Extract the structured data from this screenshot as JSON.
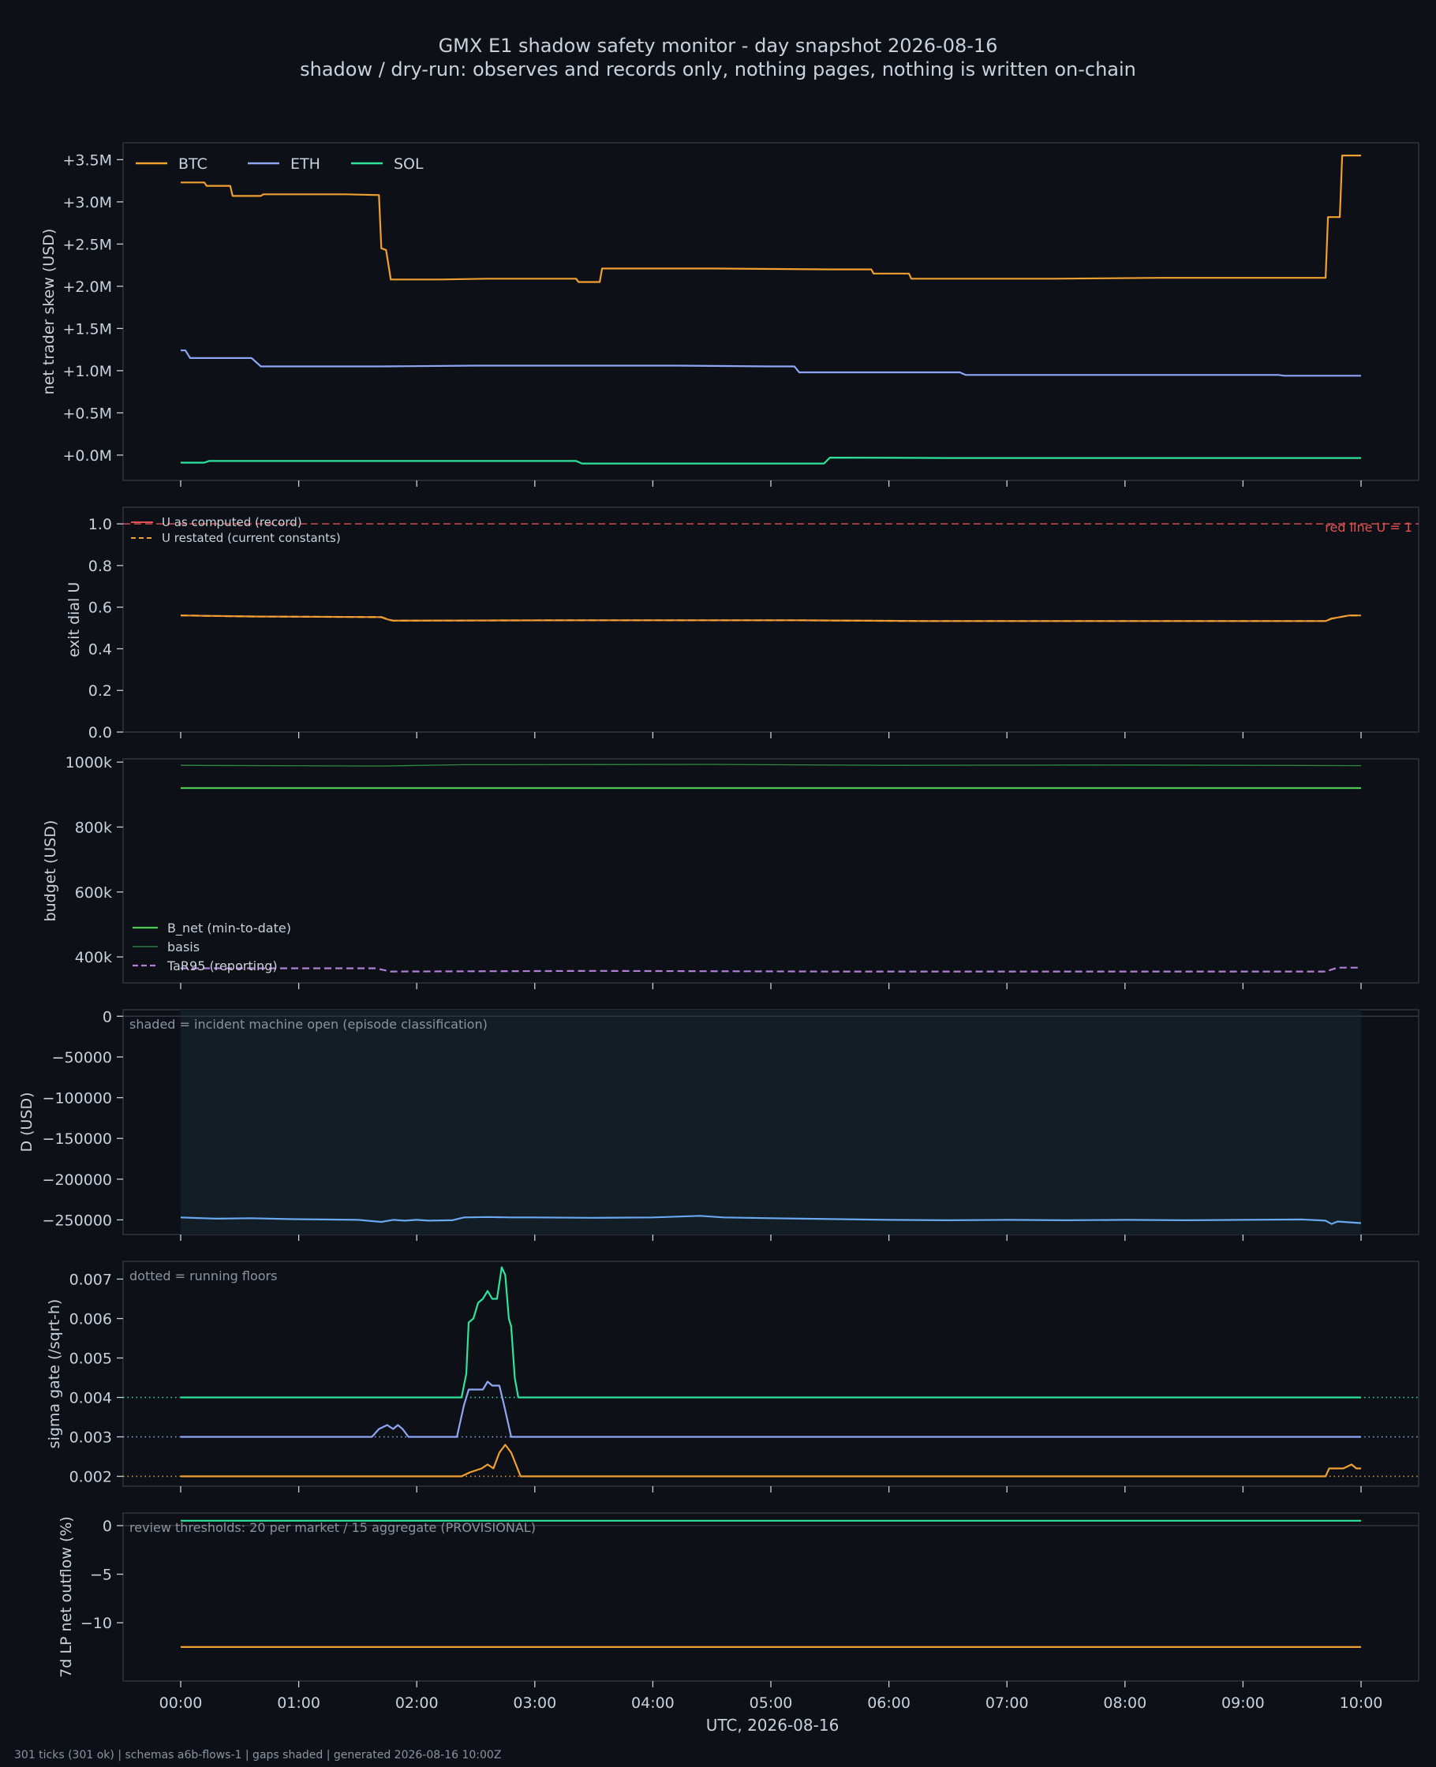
{
  "header": {
    "title": "GMX E1 shadow safety monitor - day snapshot 2026-08-16",
    "subtitle": "shadow / dry-run: observes and records only, nothing pages, nothing is written on-chain"
  },
  "footer": "301 ticks (301 ok) | schemas a6b-flows-1 | gaps shaded | generated 2026-08-16 10:00Z",
  "colors": {
    "background": "#0d1117",
    "panel": "#0d1117",
    "frame": "#30363d",
    "text": "#c9d1d9",
    "btc": "#f0a030",
    "eth": "#8fa6f5",
    "sol": "#2ee39a",
    "budget": "#4ec94e",
    "basis": "#2e8b3e",
    "tar": "#b07fd6",
    "redline": "#e05252",
    "u_computed": "#e8923a",
    "d_line": "#6aa8f0",
    "shade": "#121d26"
  },
  "chart_data": [
    {
      "id": "skew",
      "type": "line",
      "ylabel": "net trader skew (USD)",
      "ylim": [
        -300000,
        3700000
      ],
      "yticks": [
        0,
        500000,
        1000000,
        1500000,
        2000000,
        2500000,
        3000000,
        3500000
      ],
      "yticklabels": [
        "+0.0M",
        "+0.5M",
        "+1.0M",
        "+1.5M",
        "+2.0M",
        "+2.5M",
        "+3.0M",
        "+3.5M"
      ],
      "legend": "top-left",
      "series": [
        {
          "name": "BTC",
          "color": "btc",
          "style": "solid",
          "x": [
            0,
            0.2,
            0.22,
            0.42,
            0.44,
            0.68,
            0.7,
            1.4,
            1.68,
            1.7,
            1.74,
            1.78,
            2.2,
            2.6,
            3.35,
            3.37,
            3.55,
            3.57,
            4.5,
            5.5,
            5.85,
            5.87,
            6.17,
            6.19,
            7.4,
            8.3,
            9.7,
            9.72,
            9.82,
            9.84,
            10.0
          ],
          "y": [
            3230000,
            3230000,
            3190000,
            3190000,
            3070000,
            3070000,
            3090000,
            3090000,
            3080000,
            2450000,
            2430000,
            2080000,
            2080000,
            2090000,
            2090000,
            2050000,
            2050000,
            2210000,
            2210000,
            2200000,
            2200000,
            2150000,
            2150000,
            2090000,
            2090000,
            2100000,
            2100000,
            2820000,
            2820000,
            3550000,
            3550000
          ]
        },
        {
          "name": "ETH",
          "color": "eth",
          "style": "solid",
          "x": [
            0,
            0.04,
            0.08,
            0.6,
            0.68,
            1.7,
            2.5,
            4.2,
            5.0,
            5.2,
            5.24,
            6.0,
            6.6,
            6.65,
            8.2,
            9.3,
            9.35,
            10.0
          ],
          "y": [
            1240000,
            1240000,
            1150000,
            1150000,
            1050000,
            1050000,
            1060000,
            1060000,
            1050000,
            1050000,
            980000,
            980000,
            980000,
            950000,
            950000,
            950000,
            940000,
            940000
          ]
        },
        {
          "name": "SOL",
          "color": "sol",
          "style": "solid",
          "x": [
            0,
            0.2,
            0.24,
            3.35,
            3.4,
            5.45,
            5.5,
            6.5,
            10.0
          ],
          "y": [
            -90000,
            -90000,
            -70000,
            -70000,
            -100000,
            -100000,
            -30000,
            -35000,
            -35000
          ]
        }
      ]
    },
    {
      "id": "exit_dial",
      "type": "line",
      "ylabel": "exit dial U",
      "ylim": [
        0,
        1.08
      ],
      "yticks": [
        0,
        0.2,
        0.4,
        0.6,
        0.8,
        1.0
      ],
      "yticklabels": [
        "0.0",
        "0.2",
        "0.4",
        "0.6",
        "0.8",
        "1.0"
      ],
      "legend": "top-left",
      "annotations": [
        {
          "text": "red line U = 1",
          "position": "top-right"
        }
      ],
      "hlines": [
        {
          "y": 1.0,
          "color": "redline",
          "style": "dashed"
        }
      ],
      "series": [
        {
          "name": "U as computed (record)",
          "color": "u_computed",
          "style": "solid",
          "x": [
            0,
            0.6,
            1.7,
            1.76,
            1.8,
            3.4,
            5.2,
            6.3,
            9.7,
            9.75,
            9.9,
            10.0
          ],
          "y": [
            0.56,
            0.555,
            0.552,
            0.54,
            0.535,
            0.537,
            0.537,
            0.533,
            0.533,
            0.545,
            0.56,
            0.56
          ]
        },
        {
          "name": "U restated (current constants)",
          "color": "btc",
          "style": "dashed",
          "x": [
            0,
            0.6,
            1.7,
            1.76,
            1.8,
            3.4,
            5.2,
            6.3,
            9.7,
            9.75,
            9.9,
            10.0
          ],
          "y": [
            0.56,
            0.555,
            0.552,
            0.54,
            0.535,
            0.537,
            0.537,
            0.533,
            0.533,
            0.545,
            0.56,
            0.56
          ]
        }
      ]
    },
    {
      "id": "budget",
      "type": "line",
      "ylabel": "budget (USD)",
      "ylim": [
        320000,
        1010000
      ],
      "yticks": [
        400000,
        600000,
        800000,
        1000000
      ],
      "yticklabels": [
        "400k",
        "600k",
        "800k",
        "1000k"
      ],
      "legend": "bottom-left",
      "series": [
        {
          "name": "B_net (min-to-date)",
          "color": "budget",
          "style": "solid",
          "x": [
            0,
            10.0
          ],
          "y": [
            920000,
            920000
          ]
        },
        {
          "name": "basis",
          "color": "basis",
          "style": "solid",
          "x": [
            0,
            1.7,
            2.4,
            4.5,
            6.0,
            8.0,
            10.0
          ],
          "y": [
            990000,
            988000,
            992000,
            993000,
            990000,
            991000,
            989000
          ]
        },
        {
          "name": "TaR95 (reporting)",
          "color": "tar",
          "style": "dashed",
          "x": [
            0,
            1.65,
            1.78,
            3.5,
            5.5,
            9.7,
            9.8,
            10.0
          ],
          "y": [
            365000,
            365000,
            355000,
            357000,
            355000,
            355000,
            367000,
            367000
          ]
        }
      ]
    },
    {
      "id": "drawdown",
      "type": "area",
      "ylabel": "D (USD)",
      "ylim": [
        -268000,
        8000
      ],
      "yticks": [
        0,
        -50000,
        -100000,
        -150000,
        -200000,
        -250000
      ],
      "yticklabels": [
        "0",
        "−50000",
        "−100000",
        "−150000",
        "−200000",
        "−250000"
      ],
      "annotations": [
        {
          "text": "shaded = incident machine open (episode classification)",
          "position": "top-left"
        }
      ],
      "shaded_x": [
        0,
        10.0
      ],
      "hlines": [
        {
          "y": 0,
          "color": "frame",
          "style": "solid"
        }
      ],
      "series": [
        {
          "name": "D",
          "color": "d_line",
          "style": "solid",
          "x": [
            0,
            0.3,
            0.6,
            0.9,
            1.2,
            1.5,
            1.7,
            1.8,
            1.9,
            2.0,
            2.1,
            2.3,
            2.4,
            2.6,
            2.8,
            3.0,
            3.5,
            4.0,
            4.4,
            4.6,
            5.0,
            5.5,
            6.0,
            6.5,
            7.0,
            7.5,
            8.0,
            8.5,
            9.0,
            9.5,
            9.7,
            9.75,
            9.8,
            10.0
          ],
          "y": [
            -247000,
            -248500,
            -248000,
            -249000,
            -249500,
            -250000,
            -252500,
            -250000,
            -251000,
            -250000,
            -251000,
            -250500,
            -247000,
            -246500,
            -247000,
            -247000,
            -247500,
            -247000,
            -245000,
            -247000,
            -248000,
            -249000,
            -250000,
            -250500,
            -250000,
            -250500,
            -250000,
            -250500,
            -250000,
            -249500,
            -251000,
            -255000,
            -252000,
            -254000
          ]
        }
      ]
    },
    {
      "id": "sigma_gate",
      "type": "line",
      "ylabel": "sigma gate (/sqrt-h)",
      "ylim": [
        0.00175,
        0.00745
      ],
      "yticks": [
        0.002,
        0.003,
        0.004,
        0.005,
        0.006,
        0.007
      ],
      "yticklabels": [
        "0.002",
        "0.003",
        "0.004",
        "0.005",
        "0.006",
        "0.007"
      ],
      "annotations": [
        {
          "text": "dotted = running floors",
          "position": "top-left"
        }
      ],
      "hlines": [
        {
          "y": 0.004,
          "color": "sol",
          "style": "dotted"
        },
        {
          "y": 0.003,
          "color": "eth",
          "style": "dotted"
        },
        {
          "y": 0.002,
          "color": "btc",
          "style": "dotted"
        }
      ],
      "series": [
        {
          "name": "SOL",
          "color": "sol",
          "style": "solid",
          "x": [
            0,
            2.38,
            2.42,
            2.44,
            2.48,
            2.52,
            2.56,
            2.6,
            2.64,
            2.68,
            2.72,
            2.75,
            2.78,
            2.8,
            2.83,
            2.86,
            10.0
          ],
          "y": [
            0.004,
            0.004,
            0.0046,
            0.0059,
            0.006,
            0.0064,
            0.0065,
            0.0067,
            0.0065,
            0.0065,
            0.0073,
            0.0071,
            0.006,
            0.0058,
            0.0045,
            0.004,
            0.004
          ]
        },
        {
          "name": "ETH",
          "color": "eth",
          "style": "solid",
          "x": [
            0,
            1.62,
            1.68,
            1.75,
            1.8,
            1.84,
            1.88,
            1.93,
            2.34,
            2.4,
            2.44,
            2.5,
            2.56,
            2.6,
            2.64,
            2.7,
            2.74,
            2.8,
            10.0
          ],
          "y": [
            0.003,
            0.003,
            0.0032,
            0.0033,
            0.0032,
            0.0033,
            0.0032,
            0.003,
            0.003,
            0.0038,
            0.0042,
            0.0042,
            0.0042,
            0.0044,
            0.0043,
            0.0043,
            0.0038,
            0.003,
            0.003
          ]
        },
        {
          "name": "BTC",
          "color": "btc",
          "style": "solid",
          "x": [
            0,
            2.38,
            2.45,
            2.55,
            2.6,
            2.65,
            2.7,
            2.75,
            2.8,
            2.84,
            2.88,
            9.7,
            9.73,
            9.85,
            9.92,
            9.96,
            10.0
          ],
          "y": [
            0.002,
            0.002,
            0.0021,
            0.0022,
            0.0023,
            0.0022,
            0.0026,
            0.0028,
            0.0026,
            0.0023,
            0.002,
            0.002,
            0.0022,
            0.0022,
            0.0023,
            0.0022,
            0.0022
          ]
        }
      ]
    },
    {
      "id": "lp_outflow",
      "type": "line",
      "ylabel": "7d LP net outflow (%)",
      "ylim": [
        -16,
        1.3
      ],
      "yticks": [
        0,
        -5,
        -10
      ],
      "yticklabels": [
        "0",
        "−5",
        "−10"
      ],
      "xlabel": "UTC, 2026-08-16",
      "xticks": [
        0,
        1,
        2,
        3,
        4,
        5,
        6,
        7,
        8,
        9,
        10
      ],
      "xticklabels": [
        "00:00",
        "01:00",
        "02:00",
        "03:00",
        "04:00",
        "05:00",
        "06:00",
        "07:00",
        "08:00",
        "09:00",
        "10:00"
      ],
      "annotations": [
        {
          "text": "review thresholds: 20 per market / 15 aggregate (PROVISIONAL)",
          "position": "top-left"
        }
      ],
      "hlines": [
        {
          "y": 0,
          "color": "frame",
          "style": "solid"
        }
      ],
      "series": [
        {
          "name": "SOL",
          "color": "sol",
          "style": "solid",
          "x": [
            0,
            10.0
          ],
          "y": [
            0.5,
            0.5
          ]
        },
        {
          "name": "BTC",
          "color": "btc",
          "style": "solid",
          "x": [
            0,
            10.0
          ],
          "y": [
            -12.5,
            -12.5
          ]
        }
      ]
    }
  ]
}
